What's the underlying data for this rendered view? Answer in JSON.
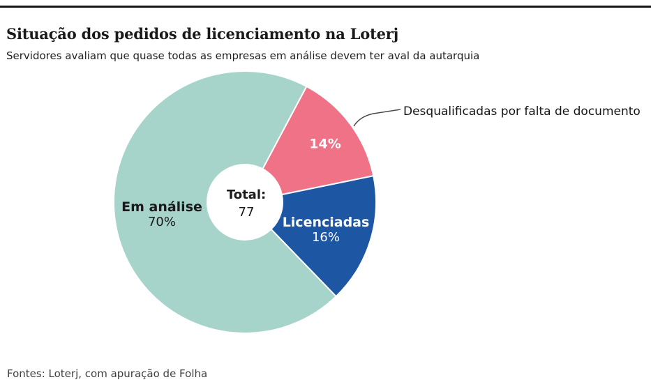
{
  "header": {
    "title": "Situação dos pedidos de licenciamento na Loterj",
    "subtitle": "Servidores avaliam que quase todas as empresas em análise devem ter aval da autarquia"
  },
  "chart_data": {
    "type": "pie",
    "donut": true,
    "title": "Situação dos pedidos de licenciamento na Loterj",
    "start_angle_deg": 28,
    "total": 77,
    "center_label": {
      "line1": "Total:",
      "line2": "77"
    },
    "slices": [
      {
        "id": "desqualificadas",
        "label": "Desqualificadas por falta de documento",
        "pct": 14,
        "value_label": "14%",
        "color": "#ef7287"
      },
      {
        "id": "licenciadas",
        "label": "Licenciadas",
        "pct": 16,
        "value_label": "16%",
        "color": "#1d57a4"
      },
      {
        "id": "em-analise",
        "label": "Em análise",
        "pct": 70,
        "value_label": "70%",
        "color": "#a6d3ca"
      }
    ],
    "legend_position": "labels-on-slices, callout for smallest slice",
    "grid": false
  },
  "footer": {
    "source": "Fontes: Loterj, com apuração de Folha"
  },
  "colors": {
    "em_analise": "#a6d3ca",
    "licenciadas": "#1d57a4",
    "desqualificadas": "#ef7287",
    "top_rule": "#141414"
  }
}
